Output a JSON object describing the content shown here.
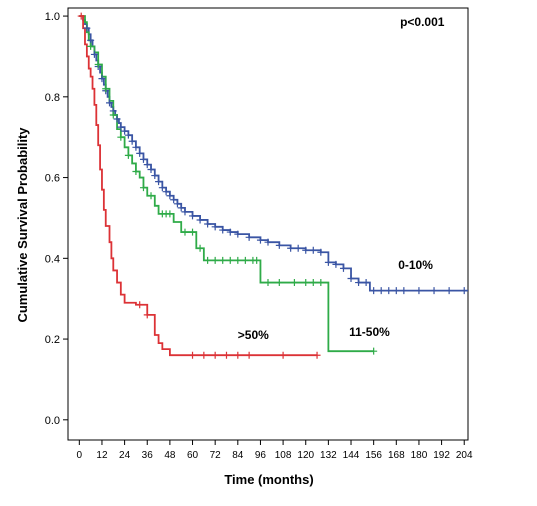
{
  "chart_data": {
    "type": "line",
    "subtype": "kaplan-meier",
    "xlabel": "Time (months)",
    "ylabel": "Cumulative Survival Probability",
    "xlim": [
      -6,
      206
    ],
    "ylim": [
      -0.05,
      1.02
    ],
    "xticks": [
      0,
      12,
      24,
      36,
      48,
      60,
      72,
      84,
      96,
      108,
      120,
      132,
      144,
      156,
      168,
      180,
      192,
      204
    ],
    "yticks": [
      0.0,
      0.2,
      0.4,
      0.6,
      0.8,
      1.0
    ],
    "ytick_labels": [
      "0.0",
      "0.2",
      "0.4",
      "0.6",
      "0.8",
      "1.0"
    ],
    "grid": false,
    "annotations": [
      {
        "text": "p<0.001",
        "x": 170,
        "y": 0.975
      },
      {
        "text": "0-10%",
        "x": 169,
        "y": 0.373
      },
      {
        "text": ">50%",
        "x": 84,
        "y": 0.2
      },
      {
        "text": "11-50%",
        "x": 143,
        "y": 0.207
      }
    ],
    "series": [
      {
        "name": "0-10%",
        "color": "#3a55a4",
        "steps": [
          [
            0,
            1.0
          ],
          [
            2,
            0.99
          ],
          [
            3,
            0.98
          ],
          [
            4,
            0.97
          ],
          [
            5,
            0.955
          ],
          [
            6,
            0.94
          ],
          [
            7,
            0.925
          ],
          [
            8,
            0.905
          ],
          [
            9,
            0.89
          ],
          [
            10,
            0.875
          ],
          [
            11,
            0.86
          ],
          [
            12,
            0.845
          ],
          [
            13,
            0.83
          ],
          [
            14,
            0.815
          ],
          [
            15,
            0.8
          ],
          [
            16,
            0.785
          ],
          [
            17,
            0.775
          ],
          [
            18,
            0.765
          ],
          [
            19,
            0.755
          ],
          [
            20,
            0.745
          ],
          [
            21,
            0.735
          ],
          [
            22,
            0.725
          ],
          [
            24,
            0.715
          ],
          [
            26,
            0.705
          ],
          [
            28,
            0.69
          ],
          [
            30,
            0.675
          ],
          [
            32,
            0.66
          ],
          [
            34,
            0.645
          ],
          [
            36,
            0.632
          ],
          [
            38,
            0.62
          ],
          [
            40,
            0.605
          ],
          [
            42,
            0.59
          ],
          [
            44,
            0.575
          ],
          [
            46,
            0.565
          ],
          [
            48,
            0.555
          ],
          [
            50,
            0.545
          ],
          [
            52,
            0.535
          ],
          [
            54,
            0.525
          ],
          [
            56,
            0.515
          ],
          [
            60,
            0.505
          ],
          [
            64,
            0.495
          ],
          [
            68,
            0.485
          ],
          [
            72,
            0.478
          ],
          [
            76,
            0.47
          ],
          [
            80,
            0.465
          ],
          [
            84,
            0.46
          ],
          [
            90,
            0.452
          ],
          [
            96,
            0.445
          ],
          [
            100,
            0.44
          ],
          [
            106,
            0.432
          ],
          [
            112,
            0.425
          ],
          [
            120,
            0.42
          ],
          [
            128,
            0.415
          ],
          [
            132,
            0.39
          ],
          [
            136,
            0.385
          ],
          [
            140,
            0.375
          ],
          [
            144,
            0.35
          ],
          [
            148,
            0.34
          ],
          [
            154,
            0.32
          ],
          [
            206,
            0.32
          ]
        ],
        "censor_x": [
          4,
          6,
          8,
          10,
          12,
          14,
          16,
          18,
          20,
          22,
          24,
          26,
          28,
          30,
          32,
          34,
          36,
          38,
          40,
          42,
          44,
          46,
          48,
          50,
          52,
          54,
          56,
          60,
          64,
          68,
          72,
          76,
          80,
          84,
          90,
          96,
          100,
          106,
          112,
          116,
          120,
          124,
          128,
          132,
          136,
          140,
          144,
          148,
          152,
          156,
          160,
          164,
          168,
          172,
          180,
          188,
          196,
          204
        ]
      },
      {
        "name": "11-50%",
        "color": "#2fab48",
        "steps": [
          [
            0,
            1.0
          ],
          [
            3,
            0.985
          ],
          [
            4,
            0.96
          ],
          [
            5,
            0.94
          ],
          [
            6,
            0.925
          ],
          [
            8,
            0.91
          ],
          [
            10,
            0.88
          ],
          [
            12,
            0.85
          ],
          [
            14,
            0.82
          ],
          [
            16,
            0.79
          ],
          [
            18,
            0.755
          ],
          [
            20,
            0.72
          ],
          [
            22,
            0.7
          ],
          [
            24,
            0.675
          ],
          [
            26,
            0.655
          ],
          [
            28,
            0.635
          ],
          [
            30,
            0.615
          ],
          [
            32,
            0.6
          ],
          [
            34,
            0.575
          ],
          [
            36,
            0.555
          ],
          [
            40,
            0.53
          ],
          [
            42,
            0.51
          ],
          [
            50,
            0.49
          ],
          [
            54,
            0.465
          ],
          [
            62,
            0.425
          ],
          [
            66,
            0.395
          ],
          [
            96,
            0.34
          ],
          [
            132,
            0.17
          ],
          [
            156,
            0.17
          ]
        ],
        "censor_x": [
          6,
          10,
          14,
          18,
          22,
          26,
          30,
          34,
          38,
          44,
          46,
          48,
          56,
          60,
          64,
          68,
          72,
          76,
          80,
          84,
          88,
          92,
          94,
          100,
          106,
          114,
          120,
          124,
          128,
          156
        ]
      },
      {
        "name": ">50%",
        "color": "#dc3236",
        "steps": [
          [
            0,
            1.0
          ],
          [
            2,
            0.97
          ],
          [
            3,
            0.93
          ],
          [
            4,
            0.9
          ],
          [
            5,
            0.87
          ],
          [
            6,
            0.85
          ],
          [
            7,
            0.82
          ],
          [
            8,
            0.78
          ],
          [
            9,
            0.73
          ],
          [
            10,
            0.68
          ],
          [
            11,
            0.62
          ],
          [
            12,
            0.57
          ],
          [
            13,
            0.52
          ],
          [
            14,
            0.48
          ],
          [
            16,
            0.44
          ],
          [
            17,
            0.4
          ],
          [
            18,
            0.37
          ],
          [
            20,
            0.34
          ],
          [
            22,
            0.31
          ],
          [
            24,
            0.29
          ],
          [
            30,
            0.285
          ],
          [
            36,
            0.26
          ],
          [
            40,
            0.21
          ],
          [
            42,
            0.19
          ],
          [
            44,
            0.175
          ],
          [
            48,
            0.16
          ],
          [
            126,
            0.16
          ]
        ],
        "censor_x": [
          1,
          32,
          36,
          60,
          66,
          72,
          78,
          84,
          90,
          108,
          126
        ]
      }
    ]
  }
}
